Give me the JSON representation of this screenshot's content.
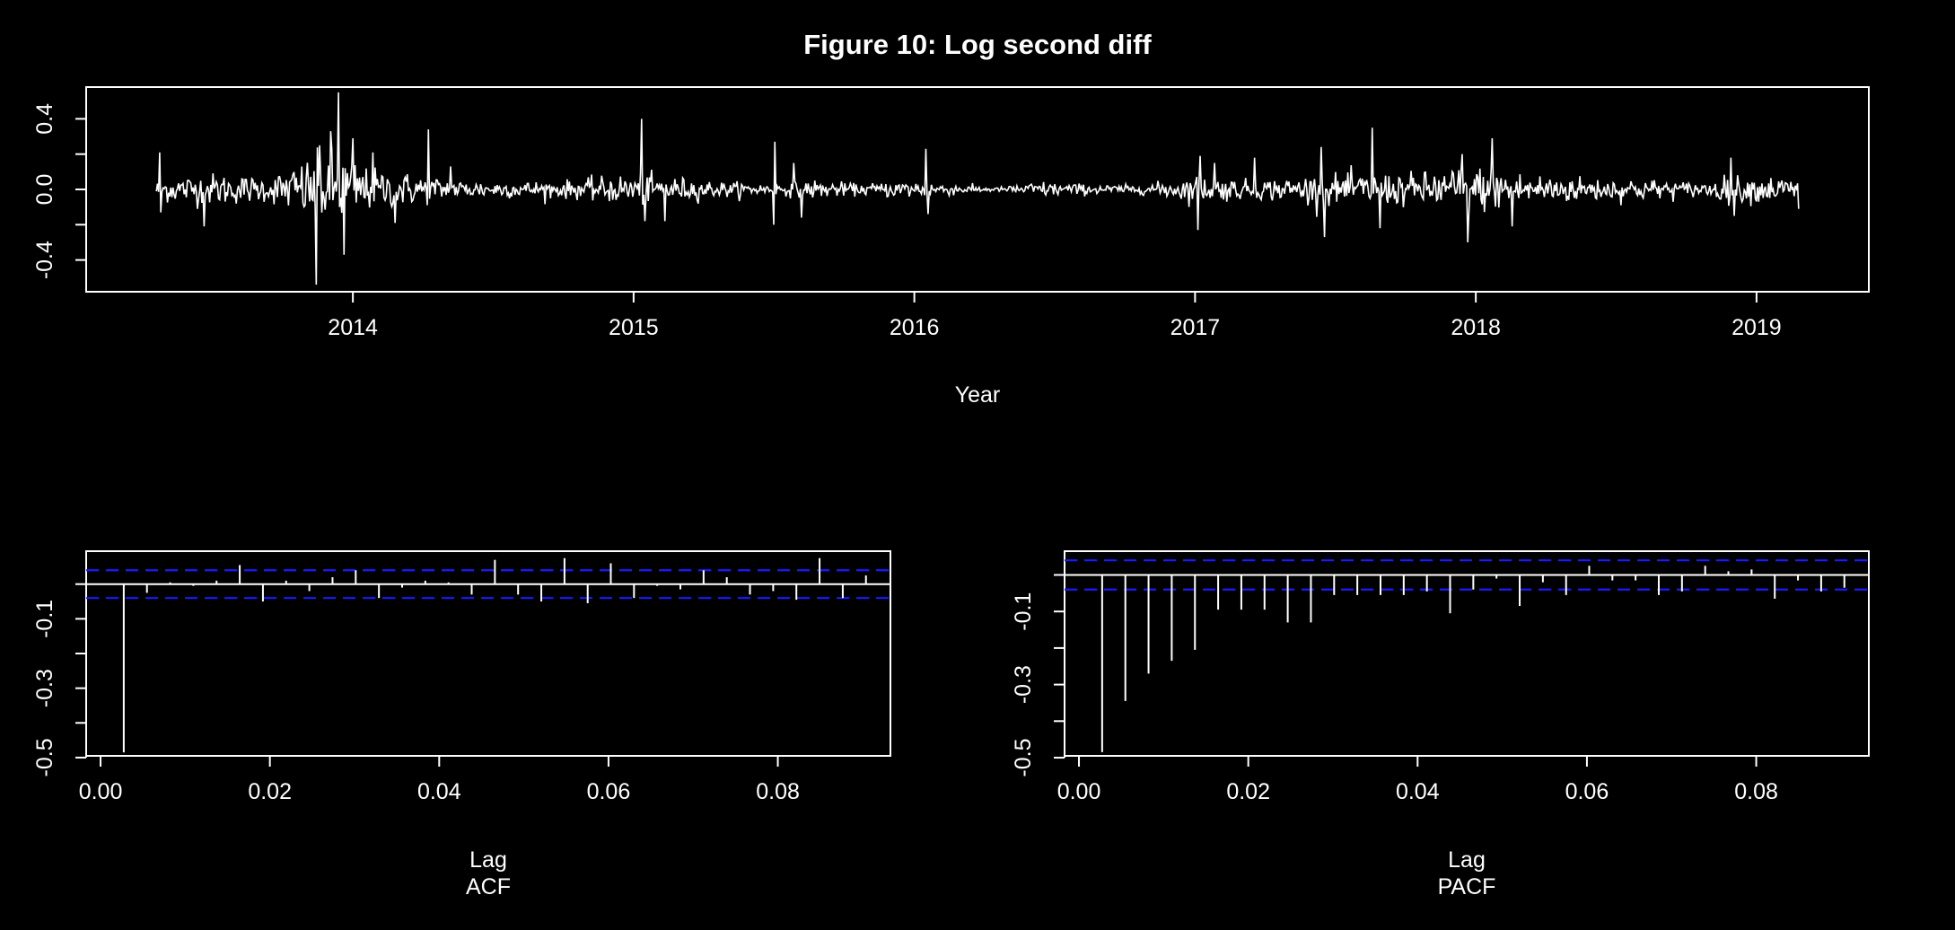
{
  "figure": {
    "title": "Figure  10: Log second diff"
  },
  "colors": {
    "background": "#000000",
    "foreground": "#ffffff",
    "confidence_band": "#1a1aff"
  },
  "chart_data": [
    {
      "id": "series",
      "type": "line",
      "title": "Figure  10: Log second diff",
      "xlabel": "Year",
      "ylabel": "",
      "x_start": 2013.3,
      "x_end": 2019.15,
      "xlim": [
        2013.05,
        2019.4
      ],
      "ylim": [
        -0.58,
        0.58
      ],
      "x_ticks": [
        2014,
        2015,
        2016,
        2017,
        2018,
        2019
      ],
      "x_tick_labels": [
        "2014",
        "2015",
        "2016",
        "2017",
        "2018",
        "2019"
      ],
      "y_ticks": [
        -0.4,
        0.0,
        0.4
      ],
      "y_tick_labels": [
        "-0.4",
        "0.0",
        "0.4"
      ],
      "y_minor_ticks": [
        -0.2,
        0.2
      ],
      "volatility_profile": [
        [
          2013.3,
          0.045
        ],
        [
          2013.5,
          0.06
        ],
        [
          2013.7,
          0.045
        ],
        [
          2013.85,
          0.12
        ],
        [
          2013.95,
          0.15
        ],
        [
          2014.05,
          0.08
        ],
        [
          2014.2,
          0.06
        ],
        [
          2014.4,
          0.035
        ],
        [
          2014.6,
          0.03
        ],
        [
          2014.8,
          0.035
        ],
        [
          2015.0,
          0.06
        ],
        [
          2015.1,
          0.05
        ],
        [
          2015.3,
          0.03
        ],
        [
          2015.5,
          0.02
        ],
        [
          2015.65,
          0.035
        ],
        [
          2015.8,
          0.02
        ],
        [
          2016.0,
          0.035
        ],
        [
          2016.2,
          0.015
        ],
        [
          2016.3,
          0.008
        ],
        [
          2016.45,
          0.03
        ],
        [
          2016.6,
          0.02
        ],
        [
          2016.8,
          0.015
        ],
        [
          2017.0,
          0.05
        ],
        [
          2017.2,
          0.035
        ],
        [
          2017.4,
          0.05
        ],
        [
          2017.6,
          0.06
        ],
        [
          2017.8,
          0.06
        ],
        [
          2017.95,
          0.09
        ],
        [
          2018.05,
          0.08
        ],
        [
          2018.2,
          0.06
        ],
        [
          2018.4,
          0.045
        ],
        [
          2018.6,
          0.04
        ],
        [
          2018.8,
          0.025
        ],
        [
          2018.9,
          0.05
        ],
        [
          2019.15,
          0.045
        ]
      ],
      "spikes": [
        [
          2013.31,
          0.21
        ],
        [
          2013.31,
          -0.13
        ],
        [
          2013.47,
          -0.21
        ],
        [
          2013.87,
          -0.54
        ],
        [
          2013.88,
          0.25
        ],
        [
          2013.92,
          0.33
        ],
        [
          2013.95,
          0.55
        ],
        [
          2013.97,
          -0.37
        ],
        [
          2014.0,
          0.29
        ],
        [
          2014.07,
          0.21
        ],
        [
          2014.15,
          -0.19
        ],
        [
          2014.27,
          0.34
        ],
        [
          2014.35,
          0.13
        ],
        [
          2015.03,
          0.4
        ],
        [
          2015.04,
          -0.18
        ],
        [
          2015.11,
          -0.18
        ],
        [
          2015.5,
          -0.2
        ],
        [
          2015.5,
          0.27
        ],
        [
          2015.57,
          0.15
        ],
        [
          2015.6,
          -0.16
        ],
        [
          2016.04,
          0.23
        ],
        [
          2016.05,
          -0.14
        ],
        [
          2017.01,
          -0.23
        ],
        [
          2017.02,
          0.19
        ],
        [
          2017.07,
          0.15
        ],
        [
          2017.21,
          0.18
        ],
        [
          2017.45,
          0.24
        ],
        [
          2017.46,
          -0.27
        ],
        [
          2017.63,
          0.35
        ],
        [
          2017.66,
          -0.22
        ],
        [
          2017.97,
          -0.3
        ],
        [
          2017.95,
          0.2
        ],
        [
          2018.06,
          0.29
        ],
        [
          2018.13,
          -0.21
        ],
        [
          2018.91,
          0.18
        ],
        [
          2018.92,
          -0.15
        ],
        [
          2019.15,
          -0.11
        ]
      ]
    },
    {
      "id": "acf",
      "type": "bar",
      "title": "ACF",
      "xlabel": "Lag",
      "ylabel": "",
      "xlim": [
        -0.0017,
        0.0933
      ],
      "ylim": [
        -0.495,
        0.095
      ],
      "ci": 0.04,
      "x_ticks": [
        0.0,
        0.02,
        0.04,
        0.06,
        0.08
      ],
      "x_tick_labels": [
        "0.00",
        "0.02",
        "0.04",
        "0.06",
        "0.08"
      ],
      "y_ticks": [
        -0.5,
        -0.4,
        -0.3,
        -0.2,
        -0.1,
        0.0
      ],
      "y_tick_labels": [
        "-0.5",
        "",
        "-0.3",
        "",
        "-0.1",
        ""
      ],
      "lags": [
        0.00274,
        0.00548,
        0.00822,
        0.01096,
        0.0137,
        0.01644,
        0.01918,
        0.02192,
        0.02466,
        0.0274,
        0.03014,
        0.03288,
        0.03562,
        0.03836,
        0.0411,
        0.04384,
        0.04658,
        0.04932,
        0.05206,
        0.0548,
        0.05754,
        0.06027,
        0.06301,
        0.06575,
        0.06849,
        0.07123,
        0.07397,
        0.07671,
        0.07945,
        0.08219,
        0.08493,
        0.08767,
        0.09041
      ],
      "values": [
        -0.485,
        -0.025,
        0.005,
        -0.005,
        0.01,
        0.055,
        -0.05,
        0.01,
        -0.02,
        0.02,
        0.04,
        -0.04,
        -0.01,
        0.01,
        0.005,
        -0.03,
        0.07,
        -0.03,
        -0.05,
        0.075,
        -0.055,
        0.06,
        -0.04,
        -0.005,
        -0.015,
        0.04,
        0.02,
        -0.03,
        -0.02,
        -0.045,
        0.075,
        -0.04,
        0.025
      ]
    },
    {
      "id": "pacf",
      "type": "bar",
      "title": "PACF",
      "xlabel": "Lag",
      "ylabel": "",
      "xlim": [
        -0.0017,
        0.0933
      ],
      "ylim": [
        -0.495,
        0.065
      ],
      "ci": 0.04,
      "x_ticks": [
        0.0,
        0.02,
        0.04,
        0.06,
        0.08
      ],
      "x_tick_labels": [
        "0.00",
        "0.02",
        "0.04",
        "0.06",
        "0.08"
      ],
      "y_ticks": [
        -0.5,
        -0.4,
        -0.3,
        -0.2,
        -0.1,
        0.0
      ],
      "y_tick_labels": [
        "-0.5",
        "",
        "-0.3",
        "",
        "-0.1",
        ""
      ],
      "lags": [
        0.00274,
        0.00548,
        0.00822,
        0.01096,
        0.0137,
        0.01644,
        0.01918,
        0.02192,
        0.02466,
        0.0274,
        0.03014,
        0.03288,
        0.03562,
        0.03836,
        0.0411,
        0.04384,
        0.04658,
        0.04932,
        0.05206,
        0.0548,
        0.05754,
        0.06027,
        0.06301,
        0.06575,
        0.06849,
        0.07123,
        0.07397,
        0.07671,
        0.07945,
        0.08219,
        0.08493,
        0.08767,
        0.09041
      ],
      "values": [
        -0.485,
        -0.345,
        -0.27,
        -0.235,
        -0.205,
        -0.095,
        -0.095,
        -0.095,
        -0.13,
        -0.13,
        -0.055,
        -0.055,
        -0.055,
        -0.055,
        -0.045,
        -0.105,
        -0.04,
        -0.01,
        -0.085,
        -0.02,
        -0.055,
        0.025,
        -0.015,
        -0.015,
        -0.055,
        -0.045,
        0.025,
        0.01,
        0.015,
        -0.065,
        -0.015,
        -0.045,
        -0.035
      ]
    }
  ]
}
